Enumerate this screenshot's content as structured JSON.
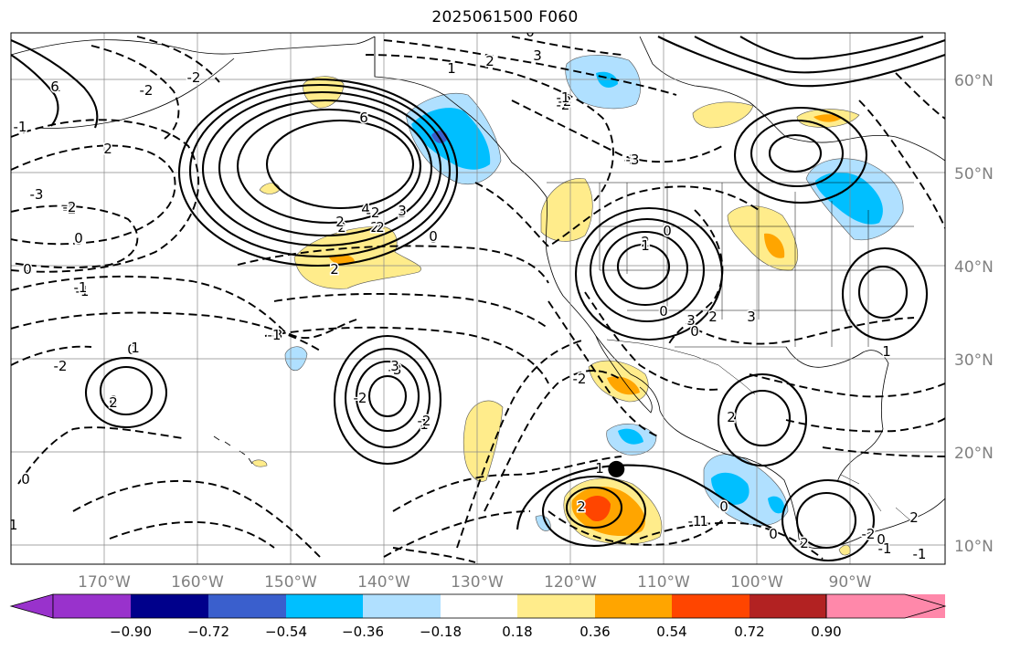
{
  "title": "2025061500 F060",
  "map": {
    "projection": "cylindrical",
    "extent": {
      "lon_min": -180,
      "lon_max": -80,
      "lat_min": 8,
      "lat_max": 65
    },
    "lat_labels": [
      "60°N",
      "50°N",
      "40°N",
      "30°N",
      "20°N",
      "10°N"
    ],
    "lon_labels": [
      "170°W",
      "160°W",
      "150°W",
      "140°W",
      "130°W",
      "120°W",
      "110°W",
      "100°W",
      "90°W"
    ],
    "gridlines": true,
    "grid_color": "#888888",
    "marker": {
      "lon": -115.2,
      "lat": 18.2,
      "color": "#000000"
    },
    "contour_style": {
      "positive": "solid",
      "negative": "dashed",
      "color": "#000000"
    },
    "contour_labels": [
      "3",
      "2",
      "2",
      "1",
      "-2",
      "-3",
      "6",
      "4",
      "3",
      "2",
      "2",
      "0",
      "-2",
      "-1",
      "0",
      "2",
      "1",
      "-2",
      "-3",
      "-3",
      "-2",
      "0",
      "0",
      "-1",
      "0",
      "-2",
      "0",
      "0",
      "1",
      "-3",
      "3",
      "2",
      "0",
      "-1",
      "-2",
      "0",
      "2",
      "1",
      "2",
      "1",
      "-1",
      "0",
      "-2",
      "2",
      "1",
      "0",
      "2",
      "3",
      "2",
      "1",
      "-1",
      "-2",
      "-3",
      "6",
      "-2",
      "-2",
      "3",
      "2",
      "2",
      "0",
      "-2",
      "-1",
      "0",
      "-1",
      "-2",
      "0",
      "1",
      "2",
      "3",
      "-1",
      "0",
      "-1"
    ]
  },
  "colorbar": {
    "colors": [
      "#9932cc",
      "#00008b",
      "#3a5fcd",
      "#00bfff",
      "#b0e0ff",
      "#ffffff",
      "#ffec8b",
      "#ffa500",
      "#ff4500",
      "#b22222",
      "#ff88aa"
    ],
    "labels": [
      "−0.90",
      "−0.72",
      "−0.54",
      "−0.36",
      "−0.18",
      "0.18",
      "0.36",
      "0.54",
      "0.72",
      "0.90"
    ]
  }
}
